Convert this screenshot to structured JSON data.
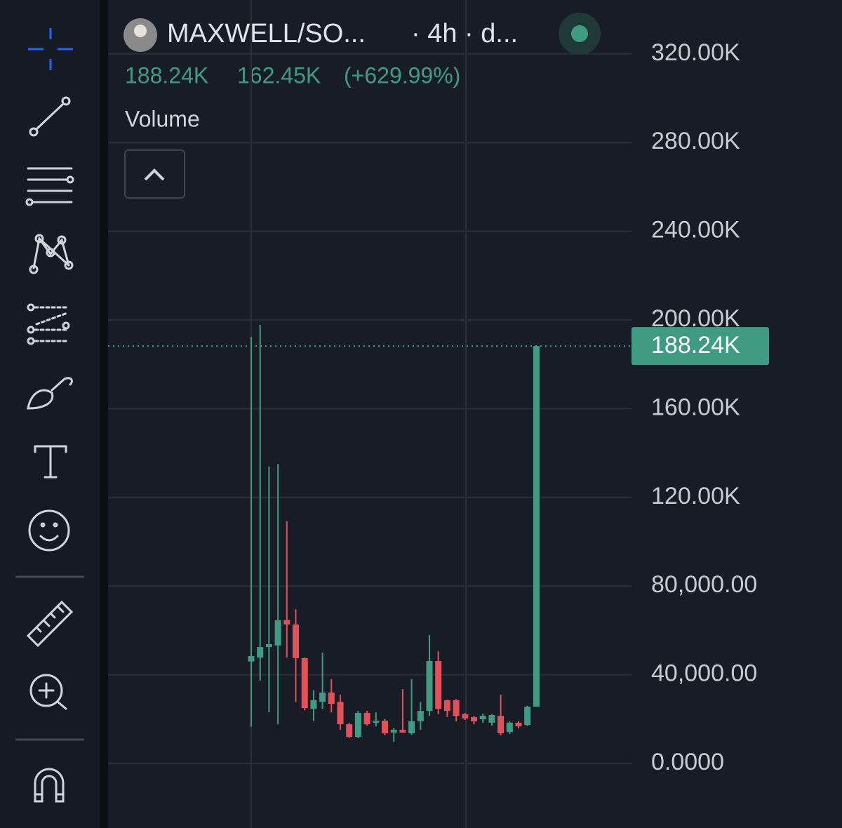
{
  "header": {
    "symbol": "MAXWELL/SO...",
    "interval": "· 4h · d...",
    "change": "162.45K",
    "change_percent": "(+629.99%)",
    "indicator": "Volume"
  },
  "chart_data": {
    "type": "candlestick",
    "ylim": [
      -29100,
      344300
    ],
    "yticks": [
      {
        "value": 0,
        "label": "0.0000"
      },
      {
        "value": 40000,
        "label": "40,000.00"
      },
      {
        "value": 80000,
        "label": "80,000.00"
      },
      {
        "value": 120000,
        "label": "120.00K"
      },
      {
        "value": 160000,
        "label": "160.00K"
      },
      {
        "value": 200000,
        "label": "200.00K"
      },
      {
        "value": 240000,
        "label": "240.00K"
      },
      {
        "value": 280000,
        "label": "280.00K"
      },
      {
        "value": 320000,
        "label": "320.00K"
      }
    ],
    "grid": true,
    "up_color": "#3f9c82",
    "down_color": "#e3505a",
    "last_price": {
      "value": 188240,
      "label": "188.24K"
    },
    "open": [
      46000,
      47800,
      52500,
      53200,
      64600,
      62700,
      47500,
      24700,
      27800,
      32000,
      27800,
      17700,
      12000,
      22800,
      18400,
      19300,
      13900,
      15200,
      13600,
      19000,
      23700,
      46200,
      28500,
      28500,
      22200,
      20900,
      19900,
      18400,
      21500,
      14200,
      18400,
      17400,
      25600
    ],
    "high": [
      192400,
      197800,
      133900,
      135000,
      109200,
      69600,
      47800,
      33000,
      50000,
      38000,
      31000,
      18300,
      23700,
      23700,
      23000,
      20000,
      16000,
      33500,
      38000,
      27800,
      57900,
      50600,
      28800,
      29000,
      22800,
      21500,
      22500,
      22200,
      31000,
      19000,
      19000,
      26000,
      188240
    ],
    "low": [
      16500,
      37300,
      23100,
      17700,
      47800,
      27800,
      24000,
      19000,
      24700,
      23000,
      15200,
      11400,
      11400,
      17000,
      16800,
      12700,
      9800,
      13900,
      13000,
      15200,
      21500,
      22200,
      20900,
      19000,
      19600,
      17700,
      18400,
      17000,
      12700,
      13300,
      15800,
      16800,
      25600
    ],
    "close": [
      48400,
      52500,
      53800,
      64600,
      62700,
      47500,
      25000,
      28500,
      32000,
      26900,
      17700,
      12000,
      22800,
      17700,
      19300,
      13600,
      15200,
      13900,
      19000,
      23700,
      46200,
      24700,
      23700,
      21500,
      20300,
      19000,
      21500,
      21800,
      13600,
      18400,
      16800,
      25600,
      188240
    ]
  }
}
